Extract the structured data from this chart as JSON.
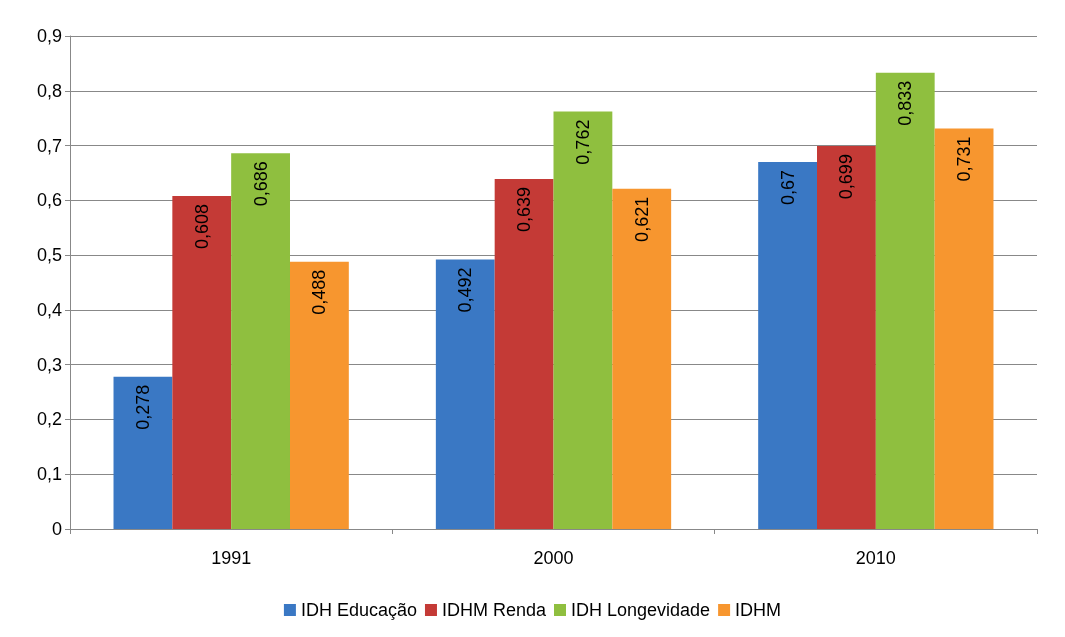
{
  "chart_data": {
    "type": "bar",
    "categories": [
      "1991",
      "2000",
      "2010"
    ],
    "series": [
      {
        "name": "IDH Educação",
        "color": "#3a78c4",
        "values": [
          0.278,
          0.492,
          0.67
        ],
        "value_labels": [
          "0,278",
          "0,492",
          "0,67"
        ]
      },
      {
        "name": "IDHM Renda",
        "color": "#c43a36",
        "values": [
          0.608,
          0.639,
          0.699
        ],
        "value_labels": [
          "0,608",
          "0,639",
          "0,699"
        ]
      },
      {
        "name": "IDH Longevidade",
        "color": "#8fbf3f",
        "values": [
          0.686,
          0.762,
          0.833
        ],
        "value_labels": [
          "0,686",
          "0,762",
          "0,833"
        ]
      },
      {
        "name": "IDHM",
        "color": "#f7962f",
        "values": [
          0.488,
          0.621,
          0.731
        ],
        "value_labels": [
          "0,488",
          "0,621",
          "0,731"
        ]
      }
    ],
    "ylim": [
      0,
      0.9
    ],
    "yticks": [
      {
        "value": 0,
        "label": "0"
      },
      {
        "value": 0.1,
        "label": "0,1"
      },
      {
        "value": 0.2,
        "label": "0,2"
      },
      {
        "value": 0.3,
        "label": "0,3"
      },
      {
        "value": 0.4,
        "label": "0,4"
      },
      {
        "value": 0.5,
        "label": "0,5"
      },
      {
        "value": 0.6,
        "label": "0,6"
      },
      {
        "value": 0.7,
        "label": "0,7"
      },
      {
        "value": 0.8,
        "label": "0,8"
      },
      {
        "value": 0.9,
        "label": "0,9"
      }
    ],
    "grid": "y",
    "legend": "bottom"
  }
}
